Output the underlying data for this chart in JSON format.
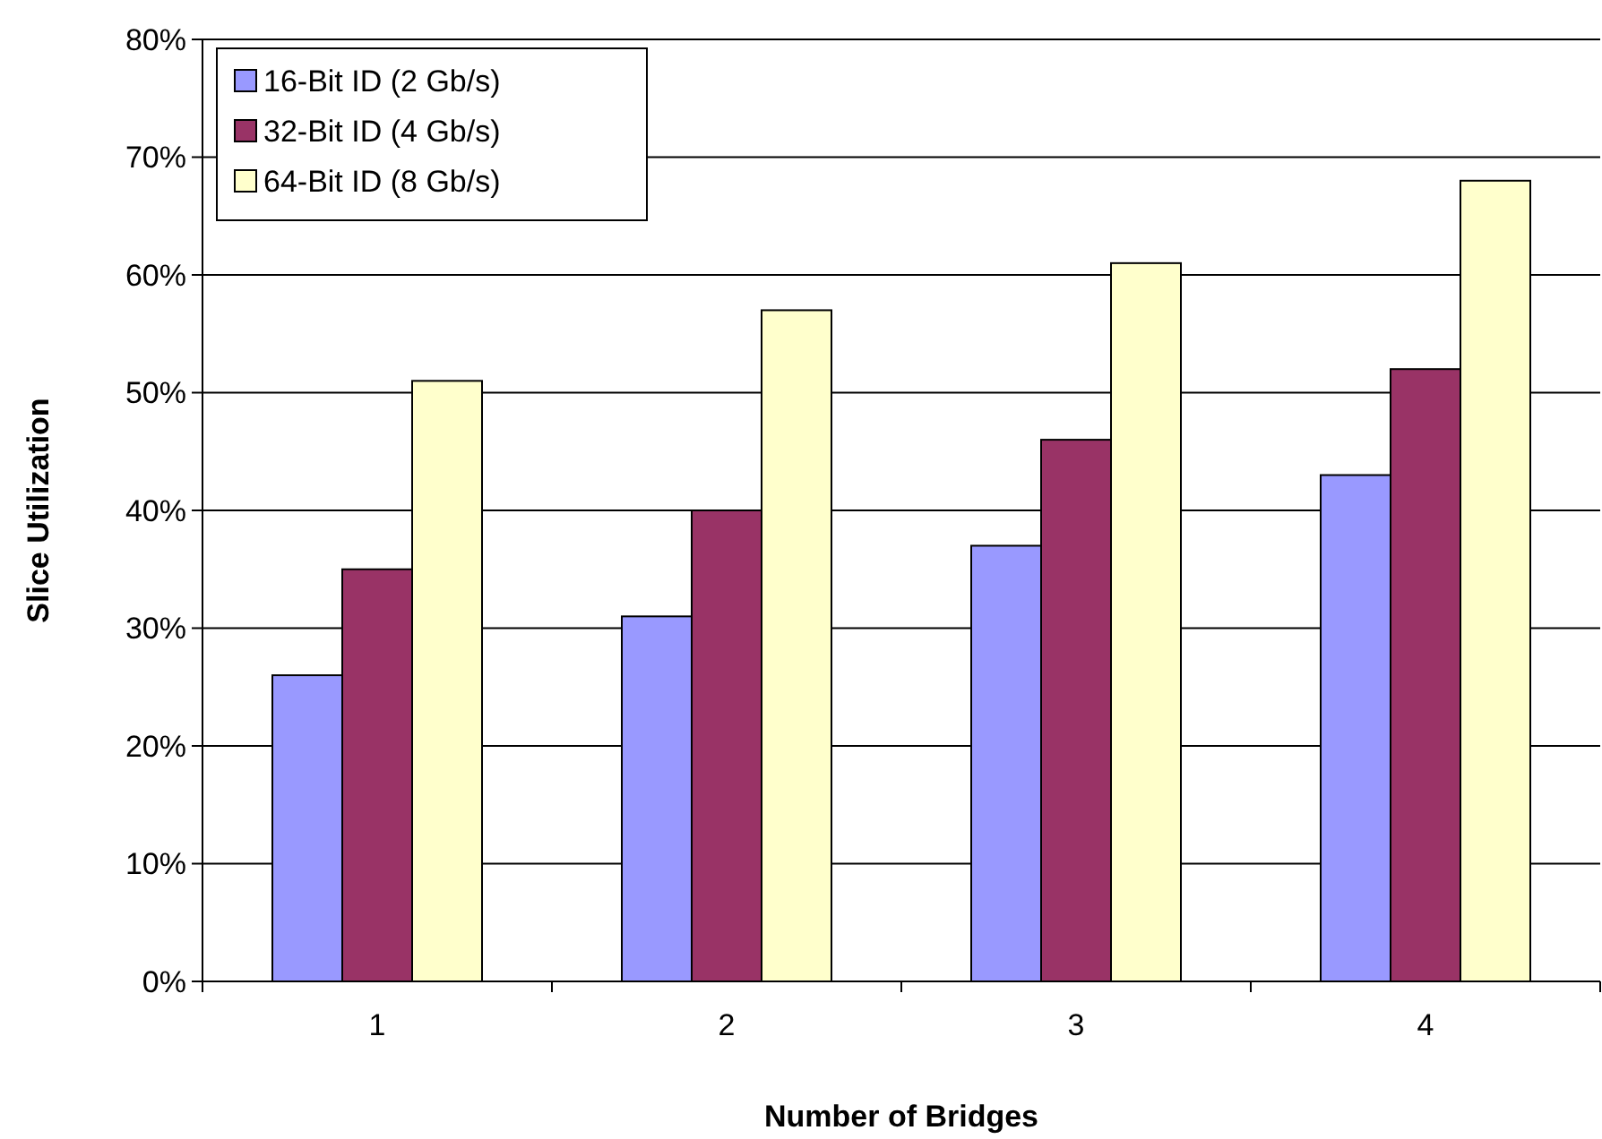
{
  "chart_data": {
    "type": "bar",
    "xlabel": "Number of Bridges",
    "ylabel": "Slice Utilization",
    "categories": [
      "1",
      "2",
      "3",
      "4"
    ],
    "series": [
      {
        "name": "16-Bit ID (2 Gb/s)",
        "color": "#9999ff",
        "values": [
          26,
          31,
          37,
          43
        ]
      },
      {
        "name": "32-Bit ID (4 Gb/s)",
        "color": "#993366",
        "values": [
          35,
          40,
          46,
          52
        ]
      },
      {
        "name": "64-Bit ID (8 Gb/s)",
        "color": "#ffffcc",
        "values": [
          51,
          57,
          61,
          68
        ]
      }
    ],
    "ylim": [
      0,
      80
    ],
    "yticks": [
      {
        "value": 0,
        "label": "0%"
      },
      {
        "value": 10,
        "label": "10%"
      },
      {
        "value": 20,
        "label": "20%"
      },
      {
        "value": 30,
        "label": "30%"
      },
      {
        "value": 40,
        "label": "40%"
      },
      {
        "value": 50,
        "label": "50%"
      },
      {
        "value": 60,
        "label": "60%"
      },
      {
        "value": 70,
        "label": "70%"
      },
      {
        "value": 80,
        "label": "80%"
      }
    ],
    "grid": "y",
    "legend": "top left"
  }
}
